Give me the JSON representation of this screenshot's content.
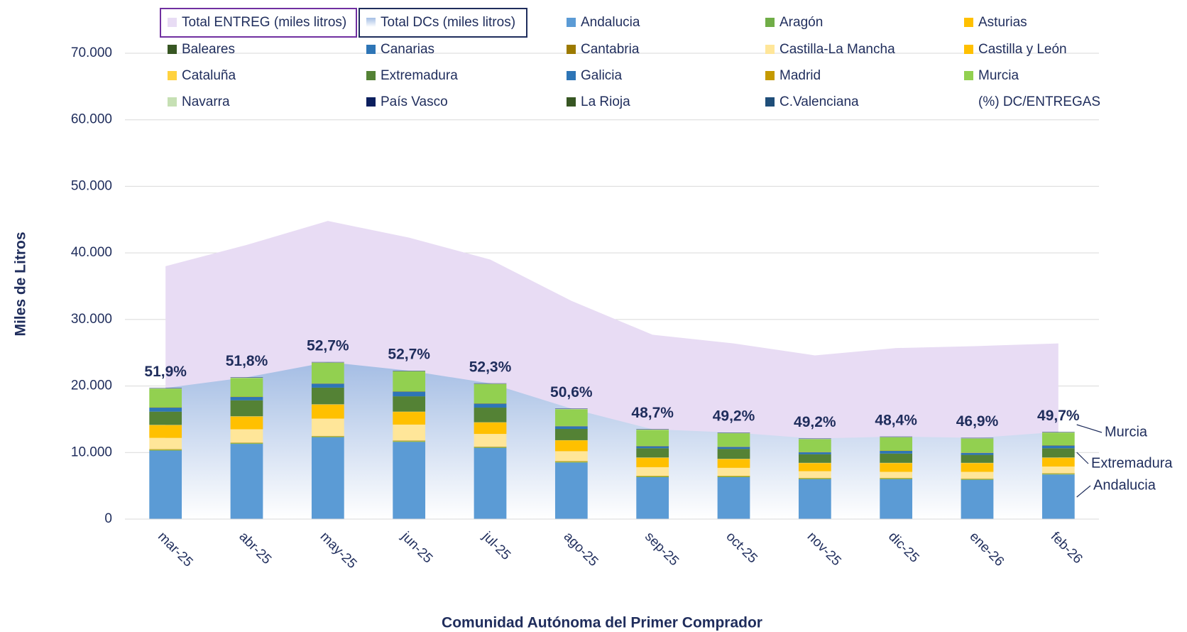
{
  "chart_data": {
    "type": "stacked_bar_area",
    "ylabel": "Miles de Litros",
    "xlabel": "Comunidad Autónoma del Primer Comprador",
    "categories": [
      "mar-25",
      "abr-25",
      "may-25",
      "jun-25",
      "jul-25",
      "ago-25",
      "sep-25",
      "oct-25",
      "nov-25",
      "dic-25",
      "ene-26",
      "feb-26"
    ],
    "ylim": [
      0,
      70000
    ],
    "yticks": [
      0,
      {
        "value": 10000,
        "label": "10.000"
      },
      {
        "value": 20000,
        "label": "20.000"
      },
      {
        "value": 30000,
        "label": "30.000"
      },
      {
        "value": 40000,
        "label": "40.000"
      },
      {
        "value": 50000,
        "label": "50.000"
      },
      {
        "value": 60000,
        "label": "60.000"
      },
      {
        "value": 70000,
        "label": "70.000"
      }
    ],
    "grid": true,
    "areas": [
      {
        "name": "Total ENTREG (miles litros)",
        "color": "#e8dcf4",
        "values": [
          38000,
          41200,
          44800,
          42300,
          39000,
          32800,
          27700,
          26400,
          24600,
          25700,
          26000,
          26400
        ]
      },
      {
        "name": "Total DCs (miles litros)",
        "color": "#a4bde4",
        "values": [
          19700,
          21300,
          23600,
          22300,
          20400,
          16600,
          13500,
          13000,
          12100,
          12400,
          12200,
          13100
        ]
      }
    ],
    "series": [
      {
        "name": "Andalucia",
        "color": "#5b9bd5",
        "values": [
          10300,
          11300,
          12300,
          11600,
          10700,
          8500,
          6300,
          6300,
          6000,
          6000,
          5900,
          6700
        ]
      },
      {
        "name": "Aragón",
        "color": "#70ad47",
        "values": [
          100,
          100,
          100,
          100,
          100,
          100,
          100,
          100,
          100,
          100,
          100,
          100
        ]
      },
      {
        "name": "Asturias",
        "color": "#ffc000",
        "values": [
          50,
          50,
          50,
          50,
          50,
          50,
          50,
          50,
          50,
          50,
          50,
          50
        ]
      },
      {
        "name": "Baleares",
        "color": "#375623",
        "values": [
          0,
          0,
          0,
          0,
          0,
          0,
          0,
          0,
          0,
          0,
          0,
          0
        ]
      },
      {
        "name": "Canarias",
        "color": "#2e75b6",
        "values": [
          0,
          0,
          0,
          0,
          0,
          0,
          0,
          0,
          0,
          0,
          0,
          0
        ]
      },
      {
        "name": "Cantabria",
        "color": "#9c7a00",
        "values": [
          50,
          50,
          50,
          50,
          50,
          50,
          50,
          50,
          50,
          50,
          50,
          50
        ]
      },
      {
        "name": "Castilla-La Mancha",
        "color": "#ffe699",
        "values": [
          1700,
          2000,
          2600,
          2400,
          1900,
          1500,
          1300,
          1200,
          1000,
          900,
          1000,
          1000
        ]
      },
      {
        "name": "Castilla y León",
        "color": "#ffc000",
        "values": [
          1900,
          1900,
          2100,
          1900,
          1700,
          1600,
          1400,
          1300,
          1200,
          1300,
          1300,
          1300
        ]
      },
      {
        "name": "Cataluña",
        "color": "#ffd23f",
        "values": [
          50,
          50,
          50,
          50,
          50,
          50,
          50,
          50,
          50,
          50,
          50,
          50
        ]
      },
      {
        "name": "Extremadura",
        "color": "#548235",
        "values": [
          2000,
          2400,
          2500,
          2300,
          2200,
          1700,
          1400,
          1500,
          1300,
          1400,
          1200,
          1400
        ]
      },
      {
        "name": "Galicia",
        "color": "#2e75b6",
        "values": [
          600,
          500,
          600,
          700,
          600,
          400,
          300,
          300,
          300,
          400,
          300,
          400
        ]
      },
      {
        "name": "Madrid",
        "color": "#c59a00",
        "values": [
          50,
          50,
          50,
          50,
          50,
          50,
          50,
          50,
          50,
          50,
          50,
          50
        ]
      },
      {
        "name": "Murcia",
        "color": "#92d050",
        "values": [
          2800,
          2800,
          3100,
          3000,
          2900,
          2500,
          2400,
          2000,
          1900,
          2000,
          2100,
          1900
        ]
      },
      {
        "name": "Navarra",
        "color": "#c6e0b4",
        "values": [
          50,
          50,
          50,
          50,
          50,
          50,
          50,
          50,
          50,
          50,
          50,
          50
        ]
      },
      {
        "name": "País Vasco",
        "color": "#0b1f5e",
        "values": [
          50,
          50,
          50,
          50,
          50,
          50,
          50,
          50,
          50,
          50,
          50,
          50
        ]
      },
      {
        "name": "La Rioja",
        "color": "#375623",
        "values": [
          0,
          0,
          0,
          0,
          0,
          0,
          0,
          0,
          0,
          0,
          0,
          0
        ]
      },
      {
        "name": "C.Valenciana",
        "color": "#1f4e79",
        "values": [
          0,
          0,
          0,
          0,
          0,
          0,
          0,
          0,
          0,
          0,
          0,
          0
        ]
      }
    ],
    "pct": {
      "name": "(%) DC/ENTREGAS",
      "values": [
        51.9,
        51.8,
        52.7,
        52.7,
        52.3,
        50.6,
        48.7,
        49.2,
        49.2,
        48.4,
        46.9,
        49.7
      ],
      "value_labels": [
        "51,9%",
        "51,8%",
        "52,7%",
        "52,7%",
        "52,3%",
        "50,6%",
        "48,7%",
        "49,2%",
        "49,2%",
        "48,4%",
        "46,9%",
        "49,7%"
      ]
    },
    "annotations": [
      "Murcia",
      "Extremadura",
      "Andalucia"
    ]
  }
}
